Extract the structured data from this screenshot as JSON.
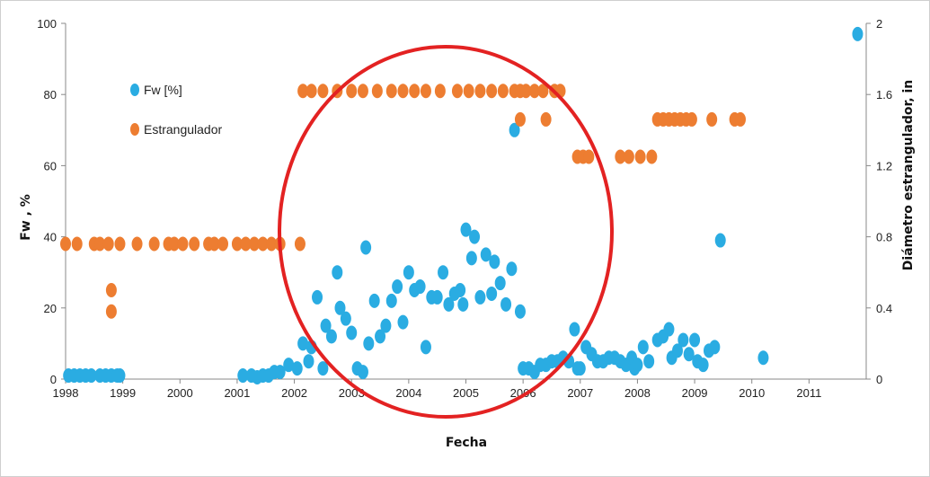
{
  "chart_data": {
    "type": "scatter",
    "xlabel": "Fecha",
    "ylabel_left": "Fw , %",
    "ylabel_right": "Diámetro estrangulador, in",
    "xlim": [
      1998,
      2012
    ],
    "ylim_left": [
      0,
      100
    ],
    "ylim_right": [
      0,
      2
    ],
    "x_ticks": [
      "1998",
      "1999",
      "2000",
      "2001",
      "2002",
      "2003",
      "2004",
      "2005",
      "2006",
      "2007",
      "2008",
      "2009",
      "2010",
      "2011"
    ],
    "y_left_ticks": [
      "0",
      "20",
      "40",
      "60",
      "80",
      "100"
    ],
    "y_right_ticks": [
      "0",
      "0.4",
      "0.8",
      "1.2",
      "1.6",
      "2"
    ],
    "grid": false,
    "legend_position": "upper-left",
    "colors": {
      "fw": "#2aace2",
      "estrangulador": "#ed7d31",
      "circle": "#e32222"
    },
    "series": [
      {
        "name": "Fw [%]",
        "axis": "left",
        "points": [
          [
            1998.05,
            1
          ],
          [
            1998.15,
            1
          ],
          [
            1998.25,
            1
          ],
          [
            1998.35,
            1
          ],
          [
            1998.45,
            1
          ],
          [
            1998.6,
            1
          ],
          [
            1998.7,
            1
          ],
          [
            1998.8,
            1
          ],
          [
            1998.9,
            1
          ],
          [
            1998.95,
            1
          ],
          [
            2001.1,
            1
          ],
          [
            2001.25,
            1
          ],
          [
            2001.35,
            0.5
          ],
          [
            2001.45,
            1
          ],
          [
            2001.55,
            1
          ],
          [
            2001.65,
            2
          ],
          [
            2001.75,
            2
          ],
          [
            2001.9,
            4
          ],
          [
            2002.05,
            3
          ],
          [
            2002.15,
            10
          ],
          [
            2002.25,
            5
          ],
          [
            2002.3,
            9
          ],
          [
            2002.4,
            23
          ],
          [
            2002.5,
            3
          ],
          [
            2002.55,
            15
          ],
          [
            2002.65,
            12
          ],
          [
            2002.75,
            30
          ],
          [
            2002.8,
            20
          ],
          [
            2002.9,
            17
          ],
          [
            2003.0,
            13
          ],
          [
            2003.1,
            3
          ],
          [
            2003.2,
            2
          ],
          [
            2003.25,
            37
          ],
          [
            2003.3,
            10
          ],
          [
            2003.4,
            22
          ],
          [
            2003.5,
            12
          ],
          [
            2003.6,
            15
          ],
          [
            2003.7,
            22
          ],
          [
            2003.8,
            26
          ],
          [
            2003.9,
            16
          ],
          [
            2004.0,
            30
          ],
          [
            2004.1,
            25
          ],
          [
            2004.2,
            26
          ],
          [
            2004.3,
            9
          ],
          [
            2004.4,
            23
          ],
          [
            2004.5,
            23
          ],
          [
            2004.6,
            30
          ],
          [
            2004.7,
            21
          ],
          [
            2004.8,
            24
          ],
          [
            2004.9,
            25
          ],
          [
            2004.95,
            21
          ],
          [
            2005.0,
            42
          ],
          [
            2005.1,
            34
          ],
          [
            2005.15,
            40
          ],
          [
            2005.25,
            23
          ],
          [
            2005.35,
            35
          ],
          [
            2005.45,
            24
          ],
          [
            2005.5,
            33
          ],
          [
            2005.6,
            27
          ],
          [
            2005.7,
            21
          ],
          [
            2005.8,
            31
          ],
          [
            2005.85,
            70
          ],
          [
            2005.95,
            19
          ],
          [
            2006.0,
            3
          ],
          [
            2006.1,
            3
          ],
          [
            2006.2,
            2
          ],
          [
            2006.3,
            4
          ],
          [
            2006.4,
            4
          ],
          [
            2006.5,
            5
          ],
          [
            2006.6,
            5
          ],
          [
            2006.7,
            6
          ],
          [
            2006.8,
            5
          ],
          [
            2006.9,
            14
          ],
          [
            2006.95,
            3
          ],
          [
            2007.0,
            3
          ],
          [
            2007.1,
            9
          ],
          [
            2007.2,
            7
          ],
          [
            2007.3,
            5
          ],
          [
            2007.4,
            5
          ],
          [
            2007.5,
            6
          ],
          [
            2007.6,
            6
          ],
          [
            2007.7,
            5
          ],
          [
            2007.8,
            4
          ],
          [
            2007.9,
            6
          ],
          [
            2007.95,
            3
          ],
          [
            2008.0,
            4
          ],
          [
            2008.1,
            9
          ],
          [
            2008.2,
            5
          ],
          [
            2008.35,
            11
          ],
          [
            2008.45,
            12
          ],
          [
            2008.55,
            14
          ],
          [
            2008.6,
            6
          ],
          [
            2008.7,
            8
          ],
          [
            2008.8,
            11
          ],
          [
            2008.9,
            7
          ],
          [
            2009.0,
            11
          ],
          [
            2009.05,
            5
          ],
          [
            2009.15,
            4
          ],
          [
            2009.25,
            8
          ],
          [
            2009.35,
            9
          ],
          [
            2009.45,
            39
          ],
          [
            2010.2,
            6
          ],
          [
            2011.85,
            97
          ]
        ]
      },
      {
        "name": "Estrangulador",
        "axis": "right",
        "points": [
          [
            1998.0,
            0.76
          ],
          [
            1998.2,
            0.76
          ],
          [
            1998.5,
            0.76
          ],
          [
            1998.6,
            0.76
          ],
          [
            1998.75,
            0.76
          ],
          [
            1998.95,
            0.76
          ],
          [
            1999.25,
            0.76
          ],
          [
            1999.55,
            0.76
          ],
          [
            1999.8,
            0.76
          ],
          [
            1999.9,
            0.76
          ],
          [
            2000.05,
            0.76
          ],
          [
            2000.25,
            0.76
          ],
          [
            2000.5,
            0.76
          ],
          [
            2000.6,
            0.76
          ],
          [
            2000.75,
            0.76
          ],
          [
            2001.0,
            0.76
          ],
          [
            2001.15,
            0.76
          ],
          [
            2001.3,
            0.76
          ],
          [
            2001.45,
            0.76
          ],
          [
            2001.6,
            0.76
          ],
          [
            2001.75,
            0.76
          ],
          [
            2002.1,
            0.76
          ],
          [
            1998.8,
            0.5
          ],
          [
            1998.8,
            0.38
          ],
          [
            2002.15,
            1.62
          ],
          [
            2002.3,
            1.62
          ],
          [
            2002.5,
            1.62
          ],
          [
            2002.75,
            1.62
          ],
          [
            2003.0,
            1.62
          ],
          [
            2003.2,
            1.62
          ],
          [
            2003.45,
            1.62
          ],
          [
            2003.7,
            1.62
          ],
          [
            2003.9,
            1.62
          ],
          [
            2004.1,
            1.62
          ],
          [
            2004.3,
            1.62
          ],
          [
            2004.55,
            1.62
          ],
          [
            2004.85,
            1.62
          ],
          [
            2005.05,
            1.62
          ],
          [
            2005.25,
            1.62
          ],
          [
            2005.45,
            1.62
          ],
          [
            2005.65,
            1.62
          ],
          [
            2005.85,
            1.62
          ],
          [
            2005.95,
            1.62
          ],
          [
            2006.05,
            1.62
          ],
          [
            2006.2,
            1.62
          ],
          [
            2006.35,
            1.62
          ],
          [
            2006.55,
            1.62
          ],
          [
            2006.65,
            1.62
          ],
          [
            2005.95,
            1.46
          ],
          [
            2006.4,
            1.46
          ],
          [
            2006.95,
            1.25
          ],
          [
            2007.05,
            1.25
          ],
          [
            2007.15,
            1.25
          ],
          [
            2007.7,
            1.25
          ],
          [
            2007.85,
            1.25
          ],
          [
            2008.05,
            1.25
          ],
          [
            2008.25,
            1.25
          ],
          [
            2008.35,
            1.46
          ],
          [
            2008.45,
            1.46
          ],
          [
            2008.55,
            1.46
          ],
          [
            2008.65,
            1.46
          ],
          [
            2008.75,
            1.46
          ],
          [
            2008.85,
            1.46
          ],
          [
            2008.95,
            1.46
          ],
          [
            2009.3,
            1.46
          ],
          [
            2009.7,
            1.46
          ],
          [
            2009.8,
            1.46
          ]
        ]
      }
    ]
  }
}
